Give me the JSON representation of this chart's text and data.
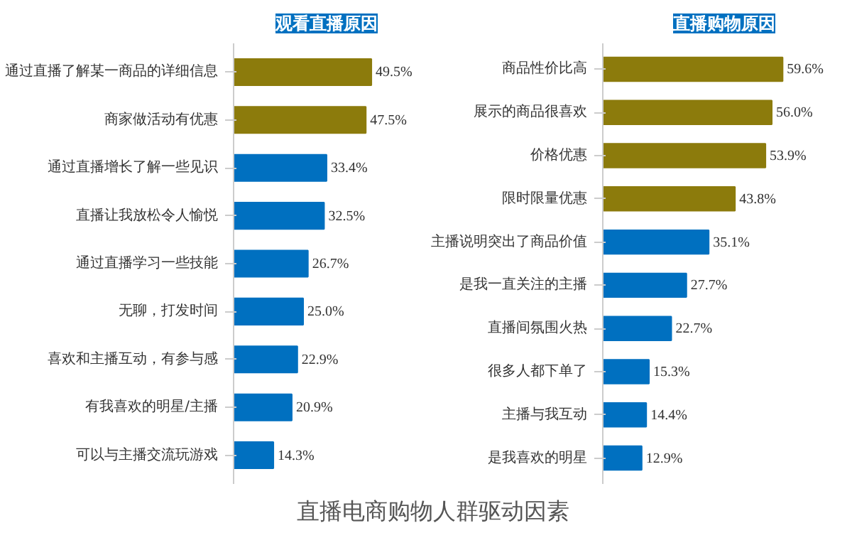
{
  "chart_data": [
    {
      "type": "bar",
      "orientation": "horizontal",
      "title": "观看直播原因",
      "data_labels": true,
      "grid": false,
      "categories": [
        "通过直播了解某一商品的详细信息",
        "商家做活动有优惠",
        "通过直播增长了解一些见识",
        "直播让我放松令人愉悦",
        "通过直播学习一些技能",
        "无聊，打发时间",
        "喜欢和主播互动，有参与感",
        "有我喜欢的明星/主播",
        "可以与主播交流玩游戏"
      ],
      "values": [
        49.5,
        47.5,
        33.4,
        32.5,
        26.7,
        25.0,
        22.9,
        20.9,
        14.3
      ],
      "value_labels": [
        "49.5%",
        "47.5%",
        "33.4%",
        "32.5%",
        "26.7%",
        "25.0%",
        "22.9%",
        "20.9%",
        "14.3%"
      ],
      "colors": [
        "#8c7b0c",
        "#8c7b0c",
        "#0070c0",
        "#0070c0",
        "#0070c0",
        "#0070c0",
        "#0070c0",
        "#0070c0",
        "#0070c0"
      ]
    },
    {
      "type": "bar",
      "orientation": "horizontal",
      "title": "直播购物原因",
      "data_labels": true,
      "grid": false,
      "categories": [
        "商品性价比高",
        "展示的商品很喜欢",
        "价格优惠",
        "限时限量优惠",
        "主播说明突出了商品价值",
        "是我一直关注的主播",
        "直播间氛围火热",
        "很多人都下单了",
        "主播与我互动",
        "是我喜欢的明星"
      ],
      "values": [
        59.6,
        56.0,
        53.9,
        43.8,
        35.1,
        27.7,
        22.7,
        15.3,
        14.4,
        12.9
      ],
      "value_labels": [
        "59.6%",
        "56.0%",
        "53.9%",
        "43.8%",
        "35.1%",
        "27.7%",
        "22.7%",
        "15.3%",
        "14.4%",
        "12.9%"
      ],
      "colors": [
        "#8c7b0c",
        "#8c7b0c",
        "#8c7b0c",
        "#8c7b0c",
        "#0070c0",
        "#0070c0",
        "#0070c0",
        "#0070c0",
        "#0070c0",
        "#0070c0"
      ],
      "annotations": [
        "直播电商购物人群驱动因素"
      ]
    }
  ]
}
